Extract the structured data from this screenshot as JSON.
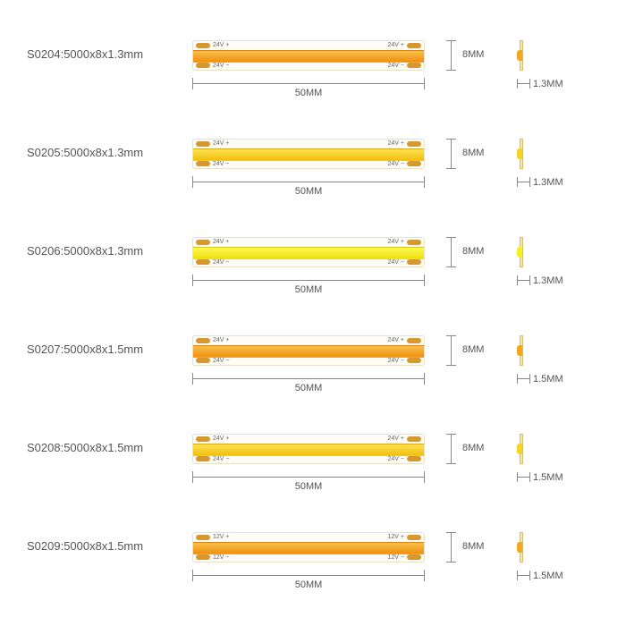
{
  "type": "infographic",
  "background_color": "#ffffff",
  "text_color": "#555555",
  "dim_line_color": "#888888",
  "pad_color": "#d89830",
  "pcb_color": "#f5e8a0",
  "strip_bg": "#fdfcf6",
  "label_fontsize": 13,
  "dim_fontsize": 11,
  "marking_fontsize": 7,
  "rows": [
    {
      "label": "S0204:5000x8x1.3mm",
      "led_color": "#f5a623",
      "led_gradient": "linear-gradient(#f8c04c,#f09010)",
      "voltage_plus": "24V +",
      "voltage_minus": "24V −",
      "length": "50MM",
      "height": "8MM",
      "thickness": "1.3MM"
    },
    {
      "label": "S0205:5000x8x1.3mm",
      "led_color": "#f5d223",
      "led_gradient": "linear-gradient(#fde050,#f0c010)",
      "voltage_plus": "24V +",
      "voltage_minus": "24V −",
      "length": "50MM",
      "height": "8MM",
      "thickness": "1.3MM"
    },
    {
      "label": "S0206:5000x8x1.3mm",
      "led_color": "#f5f023",
      "led_gradient": "linear-gradient(#fcf850,#eee010)",
      "voltage_plus": "24V +",
      "voltage_minus": "24V −",
      "length": "50MM",
      "height": "8MM",
      "thickness": "1.3MM"
    },
    {
      "label": "S0207:5000x8x1.5mm",
      "led_color": "#f5a623",
      "led_gradient": "linear-gradient(#f8c04c,#f09010)",
      "voltage_plus": "24V +",
      "voltage_minus": "24V −",
      "length": "50MM",
      "height": "8MM",
      "thickness": "1.5MM"
    },
    {
      "label": "S0208:5000x8x1.5mm",
      "led_color": "#f5d223",
      "led_gradient": "linear-gradient(#fde050,#f0c010)",
      "voltage_plus": "24V +",
      "voltage_minus": "24V −",
      "length": "50MM",
      "height": "8MM",
      "thickness": "1.5MM"
    },
    {
      "label": "S0209:5000x8x1.5mm",
      "led_color": "#f5a623",
      "led_gradient": "linear-gradient(#f8c04c,#f09010)",
      "voltage_plus": "12V +",
      "voltage_minus": "12V −",
      "length": "50MM",
      "height": "8MM",
      "thickness": "1.5MM"
    }
  ]
}
